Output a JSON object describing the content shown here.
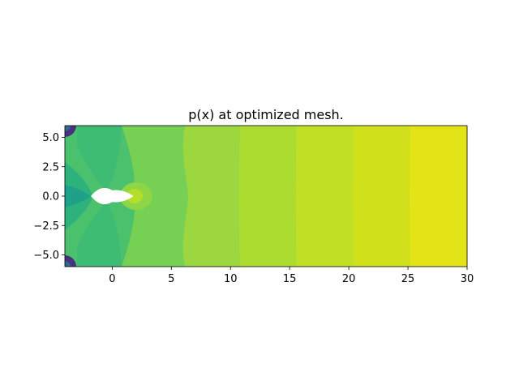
{
  "chart_data": {
    "type": "heatmap",
    "title": "p(x) at optimized mesh.",
    "xlabel": "",
    "ylabel": "",
    "xlim": [
      -4,
      30
    ],
    "ylim": [
      -6,
      6
    ],
    "x_ticks": [
      0,
      5,
      10,
      15,
      20,
      25,
      30
    ],
    "x_tick_labels": [
      "0",
      "5",
      "10",
      "15",
      "20",
      "25",
      "30"
    ],
    "y_ticks": [
      5.0,
      2.5,
      0.0,
      -2.5,
      -5.0
    ],
    "y_tick_labels": [
      "5.0",
      "2.5",
      "0.0",
      "−2.5",
      "−5.0"
    ],
    "grid": false,
    "colormap": "viridis",
    "contour_bands": [
      {
        "x_from": -4,
        "x_to": 6,
        "color": "#7fd34e"
      },
      {
        "x_from": 6,
        "x_to": 10.8,
        "color": "#9cd73f"
      },
      {
        "x_from": 10.8,
        "x_to": 15.6,
        "color": "#addc30"
      },
      {
        "x_from": 15.6,
        "x_to": 20.4,
        "color": "#c0df25"
      },
      {
        "x_from": 20.4,
        "x_to": 25.2,
        "color": "#d0e11c"
      },
      {
        "x_from": 25.2,
        "x_to": 30,
        "color": "#e2e418"
      }
    ],
    "obstacle": {
      "shape": "lens",
      "x_from": -1.8,
      "x_to": 1.8,
      "half_thickness": 0.5
    }
  }
}
